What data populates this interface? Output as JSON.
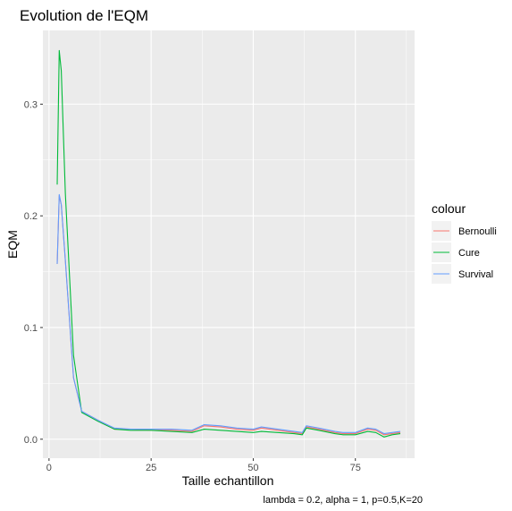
{
  "chart_data": {
    "type": "line",
    "title": "Evolution de l'EQM",
    "xlabel": "Taille echantillon",
    "ylabel": "EQM",
    "caption": "lambda = 0.2, alpha = 1, p=0.5,K=20",
    "xlim": [
      -1.5,
      89.5
    ],
    "ylim": [
      -0.017,
      0.366
    ],
    "x_ticks": [
      0,
      25,
      50,
      75
    ],
    "x_tick_labels": [
      "0",
      "25",
      "50",
      "75"
    ],
    "y_ticks": [
      0.0,
      0.1,
      0.2,
      0.3
    ],
    "y_tick_labels": [
      "0.0",
      "0.1",
      "0.2",
      "0.3"
    ],
    "grid": true,
    "legend_title": "colour",
    "legend_position": "right",
    "series": [
      {
        "name": "Bernoulli",
        "color": "#F8766D",
        "x": [
          2,
          2.5,
          3,
          4,
          6,
          8,
          12,
          16,
          20,
          25,
          30,
          35,
          38,
          42,
          46,
          50,
          52,
          56,
          60,
          62,
          63,
          66,
          70,
          72,
          75,
          78,
          80,
          82,
          84,
          86
        ],
        "y": [
          0.157,
          0.218,
          0.21,
          0.16,
          0.055,
          0.025,
          0.017,
          0.009,
          0.009,
          0.008,
          0.008,
          0.007,
          0.012,
          0.011,
          0.009,
          0.008,
          0.01,
          0.008,
          0.006,
          0.005,
          0.011,
          0.009,
          0.006,
          0.005,
          0.005,
          0.009,
          0.008,
          0.004,
          0.005,
          0.006
        ]
      },
      {
        "name": "Cure",
        "color": "#00BA38",
        "x": [
          2,
          2.5,
          3,
          4,
          6,
          8,
          12,
          16,
          20,
          25,
          30,
          35,
          38,
          42,
          46,
          50,
          52,
          56,
          60,
          62,
          63,
          66,
          70,
          72,
          75,
          78,
          80,
          82,
          84,
          86
        ],
        "y": [
          0.228,
          0.348,
          0.33,
          0.22,
          0.075,
          0.024,
          0.016,
          0.009,
          0.008,
          0.008,
          0.007,
          0.006,
          0.009,
          0.008,
          0.007,
          0.006,
          0.007,
          0.006,
          0.005,
          0.004,
          0.01,
          0.008,
          0.005,
          0.004,
          0.004,
          0.007,
          0.006,
          0.002,
          0.004,
          0.005
        ]
      },
      {
        "name": "Survival",
        "color": "#619CFF",
        "x": [
          2,
          2.5,
          3,
          4,
          6,
          8,
          12,
          16,
          20,
          25,
          30,
          35,
          38,
          42,
          46,
          50,
          52,
          56,
          60,
          62,
          63,
          66,
          70,
          72,
          75,
          78,
          80,
          82,
          84,
          86
        ],
        "y": [
          0.157,
          0.219,
          0.21,
          0.16,
          0.055,
          0.025,
          0.017,
          0.01,
          0.009,
          0.009,
          0.009,
          0.008,
          0.013,
          0.012,
          0.01,
          0.009,
          0.011,
          0.009,
          0.007,
          0.006,
          0.012,
          0.01,
          0.007,
          0.006,
          0.006,
          0.01,
          0.009,
          0.005,
          0.006,
          0.007
        ]
      }
    ]
  }
}
